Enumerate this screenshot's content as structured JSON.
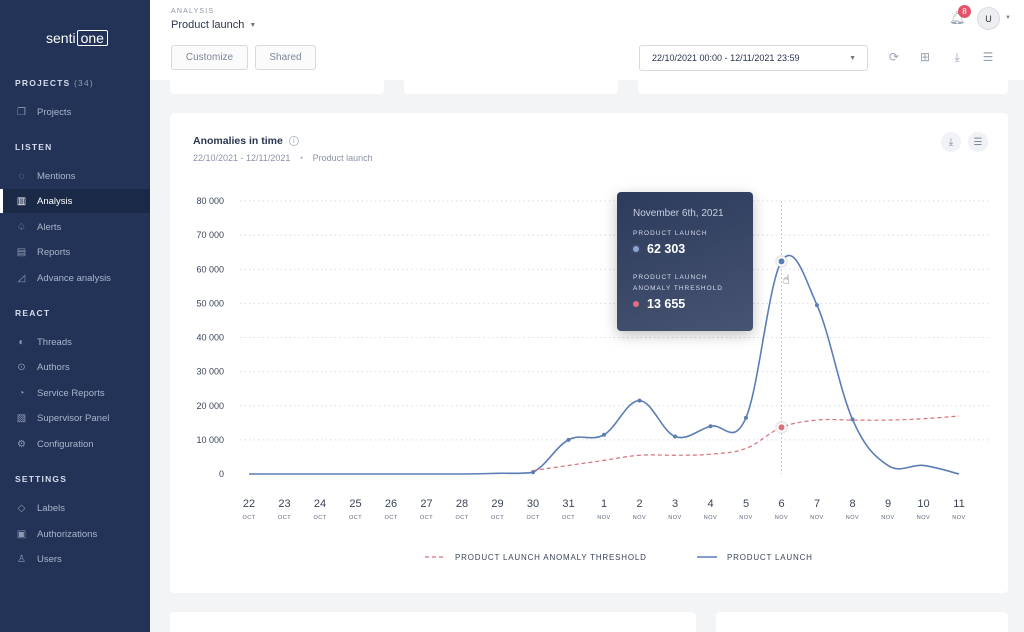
{
  "sidebar": {
    "logo": {
      "part1": "senti",
      "part2": "one"
    },
    "sections": [
      {
        "label": "PROJECTS",
        "count": "(34)"
      },
      {
        "label": "LISTEN"
      },
      {
        "label": "REACT"
      },
      {
        "label": "SETTINGS"
      }
    ],
    "items": [
      {
        "label": "Projects",
        "icon": "projects-icon"
      },
      {
        "label": "Mentions",
        "icon": "chat-bubble-icon"
      },
      {
        "label": "Analysis",
        "icon": "bar-chart-icon"
      },
      {
        "label": "Alerts",
        "icon": "bell-icon"
      },
      {
        "label": "Reports",
        "icon": "document-icon"
      },
      {
        "label": "Advance analysis",
        "icon": "line-chart-icon"
      },
      {
        "label": "Threads",
        "icon": "thread-icon"
      },
      {
        "label": "Authors",
        "icon": "author-icon"
      },
      {
        "label": "Service Reports",
        "icon": "service-report-icon"
      },
      {
        "label": "Supervisor Panel",
        "icon": "supervisor-icon"
      },
      {
        "label": "Configuration",
        "icon": "gear-icon"
      },
      {
        "label": "Labels",
        "icon": "tag-icon"
      },
      {
        "label": "Authorizations",
        "icon": "shield-icon"
      },
      {
        "label": "Users",
        "icon": "user-icon"
      }
    ],
    "active": "Analysis"
  },
  "header": {
    "section": "ANALYSIS",
    "project": "Product launch",
    "customize_label": "Customize",
    "shared_label": "Shared",
    "date_range": "22/10/2021 00:00 - 12/11/2021 23:59",
    "notification_count": "8",
    "avatar_initial": "U",
    "colors": {
      "badge": "#e05668"
    }
  },
  "card": {
    "title": "Anomalies in time",
    "date_range": "22/10/2021 - 12/11/2021",
    "project": "Product launch"
  },
  "tooltip": {
    "date": "November 6th, 2021",
    "label1": "PRODUCT LAUNCH",
    "value1": "62 303",
    "label2": "PRODUCT LAUNCH ANOMALY THRESHOLD",
    "value2": "13 655"
  },
  "chart_data": {
    "type": "line",
    "y_ticks": [
      "80 000",
      "70 000",
      "60 000",
      "50 000",
      "40 000",
      "30 000",
      "20 000",
      "10 000",
      "0"
    ],
    "ylim": [
      0,
      80000
    ],
    "grid": true,
    "legend_position": "bottom-center",
    "x": [
      {
        "day": "22",
        "month": "OCT"
      },
      {
        "day": "23",
        "month": "OCT"
      },
      {
        "day": "24",
        "month": "OCT"
      },
      {
        "day": "25",
        "month": "OCT"
      },
      {
        "day": "26",
        "month": "OCT"
      },
      {
        "day": "27",
        "month": "OCT"
      },
      {
        "day": "28",
        "month": "OCT"
      },
      {
        "day": "29",
        "month": "OCT"
      },
      {
        "day": "30",
        "month": "OCT"
      },
      {
        "day": "31",
        "month": "OCT"
      },
      {
        "day": "1",
        "month": "NOV"
      },
      {
        "day": "2",
        "month": "NOV"
      },
      {
        "day": "3",
        "month": "NOV"
      },
      {
        "day": "4",
        "month": "NOV"
      },
      {
        "day": "5",
        "month": "NOV"
      },
      {
        "day": "6",
        "month": "NOV"
      },
      {
        "day": "7",
        "month": "NOV"
      },
      {
        "day": "8",
        "month": "NOV"
      },
      {
        "day": "9",
        "month": "NOV"
      },
      {
        "day": "10",
        "month": "NOV"
      },
      {
        "day": "11",
        "month": "NOV"
      }
    ],
    "series": [
      {
        "name": "PRODUCT LAUNCH",
        "color": "#5b7db5",
        "style": "solid",
        "values": [
          0,
          0,
          0,
          0,
          0,
          0,
          0,
          200,
          500,
          10000,
          11500,
          21500,
          11000,
          14000,
          16500,
          62303,
          49500,
          16000,
          2500,
          2500,
          0
        ]
      },
      {
        "name": "PRODUCT LAUNCH ANOMALY THRESHOLD",
        "color": "#d8707c",
        "style": "dashed",
        "values": [
          null,
          null,
          null,
          null,
          null,
          null,
          null,
          null,
          1000,
          2500,
          4000,
          5500,
          5500,
          5800,
          7500,
          13655,
          15800,
          15800,
          15800,
          16200,
          17000
        ]
      }
    ],
    "highlight_index": 15
  }
}
